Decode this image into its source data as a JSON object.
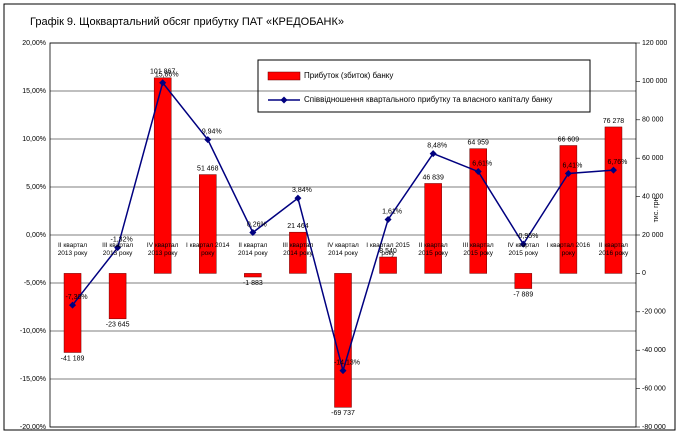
{
  "chart_data": {
    "type": "bar-line",
    "title": "Графік 9. Щоквартальний обсяг прибутку ПАТ «КРЕДОБАНК»",
    "y2_label": "тис. грн",
    "categories": [
      "II квартал 2013 року",
      "III квартал 2013 року",
      "IV квартал 2013 року",
      "I квартал 2014 року",
      "II квартал 2014 року",
      "III квартал 2014 року",
      "IV квартал 2014 року",
      "I квартал 2015 року",
      "II квартал 2015 року",
      "III квартал 2015 року",
      "IV квартал 2015 року",
      "I квартал 2016 року",
      "II квартал 2016 року"
    ],
    "series": [
      {
        "name": "Прибуток (збиток)  банку",
        "type": "bar",
        "axis": "y2",
        "color": "#ff0000",
        "values": [
          -41189,
          -23645,
          101867,
          51468,
          -1883,
          21464,
          -69737,
          8540,
          46839,
          64959,
          -7889,
          66609,
          76278
        ],
        "value_labels": [
          "-41 189",
          "-23 645",
          "101 867",
          "51 468",
          "-1 883",
          "21 464",
          "-69 737",
          "8 540",
          "46 839",
          "64 959",
          "-7 889",
          "66 609",
          "76 278"
        ]
      },
      {
        "name": "Співвідношення квартального прибутку та власного капіталу банку",
        "type": "line",
        "axis": "y",
        "color": "#000080",
        "values": [
          -7.3,
          -1.32,
          15.86,
          9.94,
          0.26,
          3.84,
          -14.13,
          1.61,
          8.48,
          6.61,
          -0.95,
          6.41,
          6.76
        ],
        "value_labels": [
          "-7,30%",
          "-1,32%",
          "15,86%",
          "9,94%",
          "0,26%",
          "3,84%",
          "-14,13%",
          "1,61%",
          "8,48%",
          "6,61%",
          "-0,95%",
          "6,41%",
          "6,76%"
        ]
      }
    ],
    "ylim": [
      -20,
      20
    ],
    "yticks": [
      {
        "value": -20,
        "label": "-20,00%"
      },
      {
        "value": -15,
        "label": "-15,00%"
      },
      {
        "value": -10,
        "label": "-10,00%"
      },
      {
        "value": -5,
        "label": "-5,00%"
      },
      {
        "value": 0,
        "label": "0,00%"
      },
      {
        "value": 5,
        "label": "5,00%"
      },
      {
        "value": 10,
        "label": "10,00%"
      },
      {
        "value": 15,
        "label": "15,00%"
      },
      {
        "value": 20,
        "label": "20,00%"
      }
    ],
    "y2lim": [
      -80000,
      120000
    ],
    "y2ticks": [
      {
        "value": -80000,
        "label": "-80 000"
      },
      {
        "value": -60000,
        "label": "-60 000"
      },
      {
        "value": -40000,
        "label": "-40 000"
      },
      {
        "value": -20000,
        "label": "-20 000"
      },
      0,
      {
        "value": 20000,
        "label": "20 000"
      },
      {
        "value": 40000,
        "label": "40 000"
      },
      {
        "value": 60000,
        "label": "60 000"
      },
      {
        "value": 80000,
        "label": "80 000"
      },
      {
        "value": 100000,
        "label": "100 000"
      },
      {
        "value": 120000,
        "label": "120 000"
      }
    ],
    "grid": true
  }
}
